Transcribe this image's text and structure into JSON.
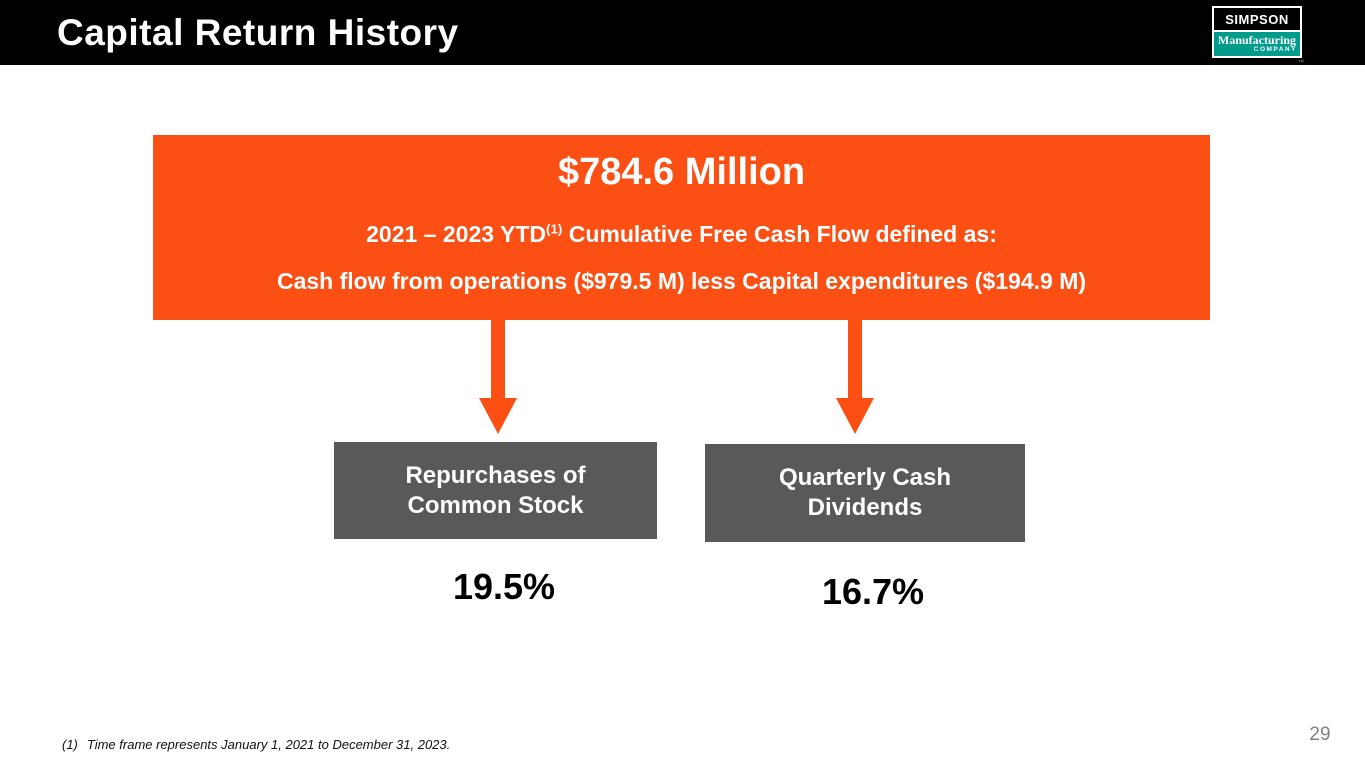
{
  "header": {
    "title": "Capital Return History",
    "logo": {
      "line1": "SIMPSON",
      "line2": "Manufacturing",
      "line3": "COMPANY",
      "trademark": "™"
    }
  },
  "colors": {
    "accent_orange": "#FB4F14",
    "box_gray": "#595959",
    "logo_teal": "#009B8B",
    "page_number_gray": "#808080"
  },
  "highlight_box": {
    "amount": "$784.6 Million",
    "line2_prefix": "2021 – 2023 YTD",
    "line2_superscript": "(1)",
    "line2_suffix": " Cumulative Free Cash Flow defined as:",
    "line3": "Cash flow from operations ($979.5 M) less Capital expenditures ($194.9 M)"
  },
  "categories": [
    {
      "label_line1": "Repurchases of",
      "label_line2": "Common Stock",
      "value": "19.5%"
    },
    {
      "label_line1": "Quarterly Cash",
      "label_line2": "Dividends",
      "value": "16.7%"
    }
  ],
  "footnote": {
    "marker": "(1)",
    "text": "Time frame represents January 1, 2021 to December 31, 2023."
  },
  "page_number": "29"
}
